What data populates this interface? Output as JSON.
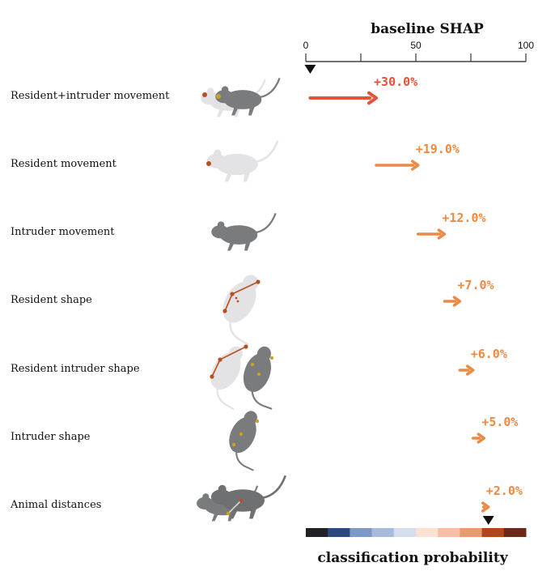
{
  "chart_data": {
    "type": "bar",
    "title": "baseline SHAP",
    "xlim": [
      0,
      100
    ],
    "ticks": [
      0,
      50,
      100
    ],
    "baseline_marker": 2,
    "end_marker": 83,
    "series": [
      {
        "label": "Resident+intruder movement",
        "start": 2,
        "end": 32,
        "value_label": "+30.0%",
        "color": "#e4543a",
        "icon": "two-mice-movement-icon"
      },
      {
        "label": "Resident movement",
        "start": 32,
        "end": 51,
        "value_label": "+19.0%",
        "color": "#ec8a45",
        "icon": "resident-mouse-icon"
      },
      {
        "label": "Intruder movement",
        "start": 51,
        "end": 63,
        "value_label": "+12.0%",
        "color": "#ec8a45",
        "icon": "intruder-mouse-icon"
      },
      {
        "label": "Resident shape",
        "start": 63,
        "end": 70,
        "value_label": "+7.0%",
        "color": "#ec8a45",
        "icon": "resident-shape-icon"
      },
      {
        "label": "Resident intruder shape",
        "start": 70,
        "end": 76,
        "value_label": "+6.0%",
        "color": "#ec8a45",
        "icon": "resident-intruder-shape-icon"
      },
      {
        "label": "Intruder shape",
        "start": 76,
        "end": 81,
        "value_label": "+5.0%",
        "color": "#ec8a45",
        "icon": "intruder-shape-icon"
      },
      {
        "label": "Animal distances",
        "start": 81,
        "end": 83,
        "value_label": "+2.0%",
        "color": "#ec8a45",
        "icon": "animal-distances-icon"
      }
    ],
    "colorbar": {
      "label": "classification probability",
      "colors": [
        "#222226",
        "#2d4a7e",
        "#7e99c8",
        "#a9bbdc",
        "#d6deee",
        "#fbe0d4",
        "#f5c0a6",
        "#e89a72",
        "#b4451d",
        "#6b2a17"
      ]
    }
  }
}
